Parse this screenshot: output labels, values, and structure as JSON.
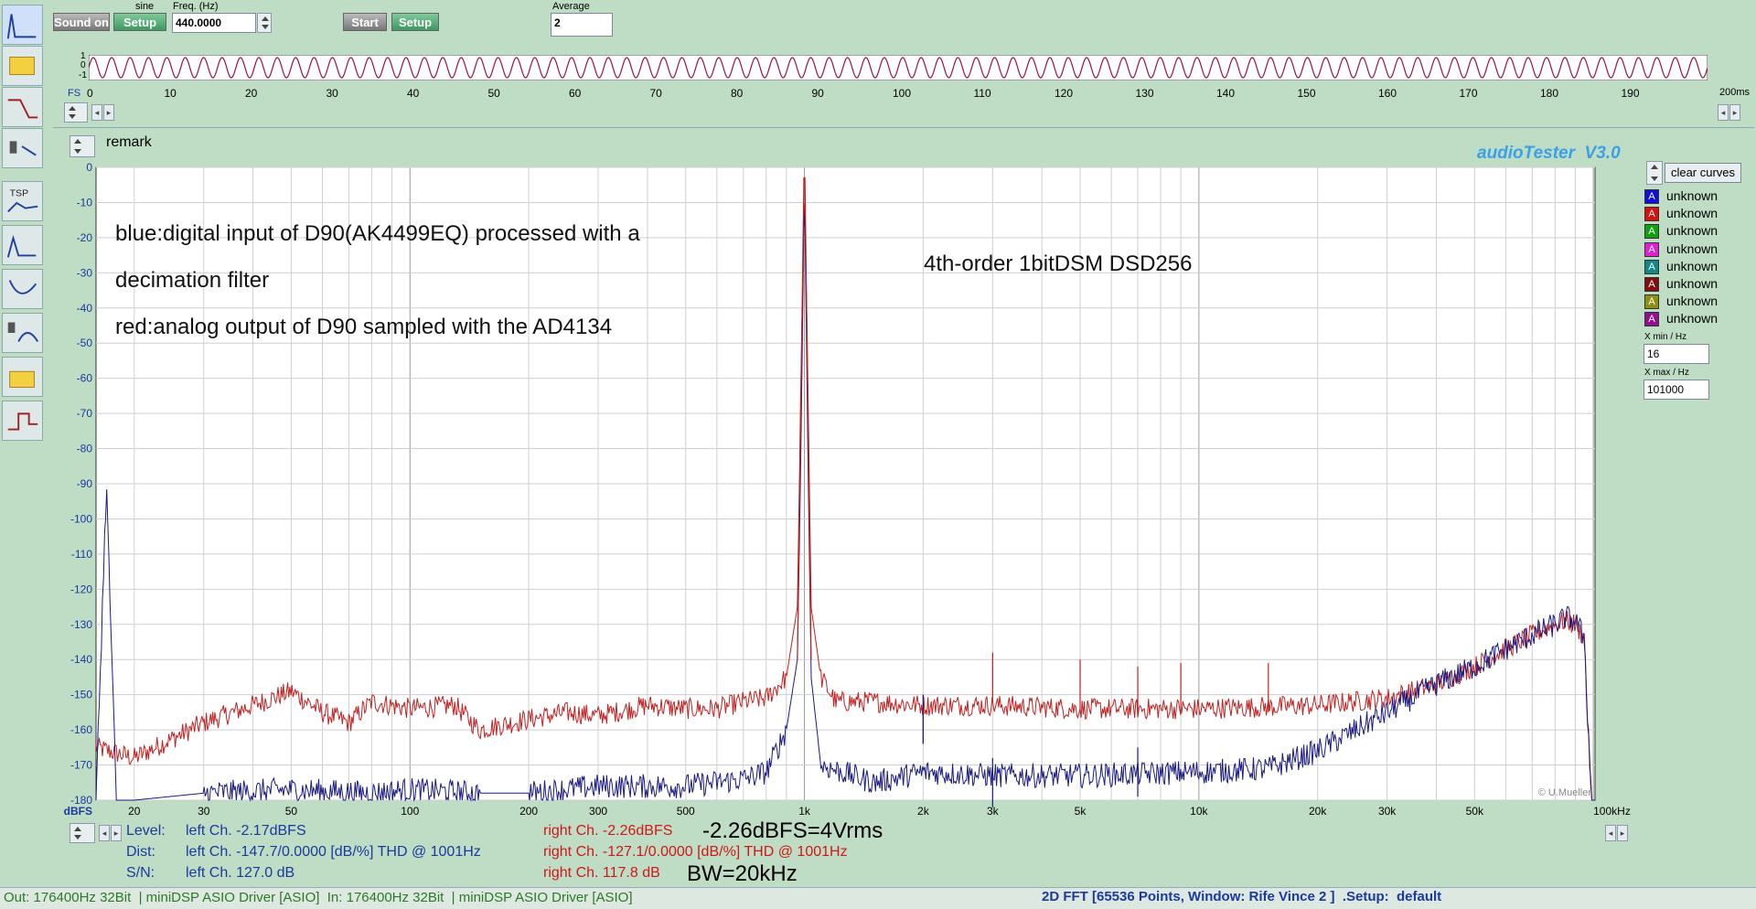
{
  "generator": {
    "sound_button": "Sound on",
    "waveform_label": "sine",
    "setup_button": "Setup",
    "freq_label": "Freq. (Hz)",
    "freq_value": "440.0000"
  },
  "measure": {
    "start_button": "Start",
    "setup_button": "Setup",
    "average_label": "Average",
    "average_value": "2"
  },
  "scope": {
    "y_labels": [
      "1",
      "0",
      "-1"
    ],
    "fs_label": "FS",
    "unit": "200ms",
    "ticks": [
      "0",
      "10",
      "20",
      "30",
      "40",
      "50",
      "60",
      "70",
      "80",
      "90",
      "100",
      "110",
      "120",
      "130",
      "140",
      "150",
      "160",
      "170",
      "180",
      "190"
    ]
  },
  "remark_label": "remark",
  "brand": "audioTester  V3.0",
  "copyright": "© U.Mueller",
  "annotations": {
    "line1": "blue:digital input of D90(AK4499EQ) processed with a",
    "line2": "decimation filter",
    "line3": "red:analog output of D90 sampled with the AD4134",
    "title_right": "4th-order 1bitDSM DSD256",
    "level_note": "-2.26dBFS=4Vrms",
    "bw_note": "BW=20kHz"
  },
  "right_panel": {
    "clear_button": "clear curves",
    "legend": [
      {
        "label": "unknown",
        "color": "#1010d8"
      },
      {
        "label": "unknown",
        "color": "#d81010"
      },
      {
        "label": "unknown",
        "color": "#10a010"
      },
      {
        "label": "unknown",
        "color": "#e020d0"
      },
      {
        "label": "unknown",
        "color": "#108888"
      },
      {
        "label": "unknown",
        "color": "#801010"
      },
      {
        "label": "unknown",
        "color": "#909010"
      },
      {
        "label": "unknown",
        "color": "#901090"
      }
    ],
    "xmin_label": "X min / Hz",
    "xmin_value": "16",
    "xmax_label": "X max / Hz",
    "xmax_value": "101000"
  },
  "readout": {
    "level_label": "Level:",
    "dist_label": "Dist:",
    "sn_label": "S/N:",
    "left_level": "left Ch. -2.17dBFS",
    "left_dist": "left Ch. -147.7/0.0000 [dB/%] THD @ 1001Hz",
    "left_sn": "left Ch. 127.0 dB",
    "right_level": "right Ch. -2.26dBFS",
    "right_dist": "right Ch. -127.1/0.0000 [dB/%] THD @ 1001Hz",
    "right_sn": "right Ch. 117.8 dB"
  },
  "status": {
    "left": "Out: 176400Hz 32Bit  | miniDSP ASIO Driver [ASIO]  In: 176400Hz 32Bit  | miniDSP ASIO Driver [ASIO]",
    "right": "2D FFT [65536 Points, Window: Rife Vince 2 ]  .Setup:  default"
  },
  "chart_data": {
    "type": "line",
    "title": "",
    "xlabel": "",
    "ylabel": "dBFS",
    "x_scale": "log",
    "xlim": [
      16,
      101000
    ],
    "ylim": [
      -180,
      0
    ],
    "grid": true,
    "y_ticks": [
      "0",
      "-10",
      "-20",
      "-30",
      "-40",
      "-50",
      "-60",
      "-70",
      "-80",
      "-90",
      "-100",
      "-110",
      "-120",
      "-130",
      "-140",
      "-150",
      "-160",
      "-170",
      "-180"
    ],
    "y_unit_label": "dBFS",
    "x_ticks": [
      {
        "v": 20,
        "label": "20"
      },
      {
        "v": 30,
        "label": "30"
      },
      {
        "v": 50,
        "label": "50"
      },
      {
        "v": 100,
        "label": "100"
      },
      {
        "v": 200,
        "label": "200"
      },
      {
        "v": 300,
        "label": "300"
      },
      {
        "v": 500,
        "label": "500"
      },
      {
        "v": 1000,
        "label": "1k"
      },
      {
        "v": 2000,
        "label": "2k"
      },
      {
        "v": 3000,
        "label": "3k"
      },
      {
        "v": 5000,
        "label": "5k"
      },
      {
        "v": 10000,
        "label": "10k"
      },
      {
        "v": 20000,
        "label": "20k"
      },
      {
        "v": 30000,
        "label": "30k"
      },
      {
        "v": 50000,
        "label": "50k"
      },
      {
        "v": 100000,
        "label": "100kHz"
      }
    ],
    "series": [
      {
        "color": "#c02020",
        "points": [
          [
            16,
            -165
          ],
          [
            20,
            -168
          ],
          [
            30,
            -158
          ],
          [
            40,
            -153
          ],
          [
            50,
            -149
          ],
          [
            60,
            -155
          ],
          [
            70,
            -158
          ],
          [
            80,
            -152
          ],
          [
            100,
            -154
          ],
          [
            130,
            -153
          ],
          [
            150,
            -160
          ],
          [
            200,
            -157
          ],
          [
            250,
            -155
          ],
          [
            300,
            -156
          ],
          [
            400,
            -153
          ],
          [
            500,
            -154
          ],
          [
            600,
            -154
          ],
          [
            700,
            -152
          ],
          [
            800,
            -151
          ],
          [
            900,
            -145
          ],
          [
            960,
            -125
          ],
          [
            980,
            -60
          ],
          [
            1000,
            -3
          ],
          [
            1020,
            -60
          ],
          [
            1040,
            -125
          ],
          [
            1100,
            -145
          ],
          [
            1200,
            -152
          ],
          [
            1500,
            -152
          ],
          [
            2000,
            -153
          ],
          [
            3000,
            -153
          ],
          [
            5000,
            -154
          ],
          [
            10000,
            -154
          ],
          [
            20000,
            -153
          ],
          [
            30000,
            -151
          ],
          [
            40000,
            -147
          ],
          [
            50000,
            -142
          ],
          [
            60000,
            -137
          ],
          [
            70000,
            -133
          ],
          [
            80000,
            -130
          ],
          [
            85000,
            -129
          ],
          [
            90000,
            -130
          ],
          [
            95000,
            -134
          ],
          [
            97000,
            -160
          ],
          [
            99000,
            -180
          ]
        ]
      },
      {
        "color": "#1a1a80",
        "points": [
          [
            16,
            -180
          ],
          [
            17,
            -90
          ],
          [
            18,
            -180
          ],
          [
            20,
            -180
          ],
          [
            30,
            -178
          ],
          [
            50,
            -177
          ],
          [
            80,
            -178
          ],
          [
            100,
            -177
          ],
          [
            150,
            -178
          ],
          [
            200,
            -178
          ],
          [
            300,
            -176
          ],
          [
            500,
            -176
          ],
          [
            700,
            -174
          ],
          [
            800,
            -172
          ],
          [
            900,
            -160
          ],
          [
            960,
            -140
          ],
          [
            980,
            -80
          ],
          [
            1000,
            -3
          ],
          [
            1020,
            -80
          ],
          [
            1040,
            -145
          ],
          [
            1100,
            -170
          ],
          [
            1500,
            -175
          ],
          [
            2000,
            -172
          ],
          [
            3000,
            -173
          ],
          [
            5000,
            -173
          ],
          [
            10000,
            -172
          ],
          [
            15000,
            -171
          ],
          [
            20000,
            -166
          ],
          [
            25000,
            -160
          ],
          [
            30000,
            -155
          ],
          [
            40000,
            -147
          ],
          [
            50000,
            -142
          ],
          [
            60000,
            -137
          ],
          [
            70000,
            -133
          ],
          [
            80000,
            -130
          ],
          [
            85000,
            -128
          ],
          [
            90000,
            -129
          ],
          [
            95000,
            -134
          ],
          [
            97000,
            -160
          ],
          [
            99000,
            -180
          ]
        ]
      }
    ],
    "spurs": [
      {
        "x": 2000,
        "y": -150,
        "color": "#c02020"
      },
      {
        "x": 3000,
        "y": -138,
        "color": "#c02020"
      },
      {
        "x": 5000,
        "y": -140,
        "color": "#c02020"
      },
      {
        "x": 7000,
        "y": -142,
        "color": "#c02020"
      },
      {
        "x": 9000,
        "y": -141,
        "color": "#c02020"
      },
      {
        "x": 15000,
        "y": -141,
        "color": "#c02020"
      },
      {
        "x": 2000,
        "y": -150,
        "color": "#1a1a80"
      },
      {
        "x": 3000,
        "y": -168,
        "color": "#1a1a80"
      },
      {
        "x": 7000,
        "y": -165,
        "color": "#1a1a80"
      }
    ]
  }
}
